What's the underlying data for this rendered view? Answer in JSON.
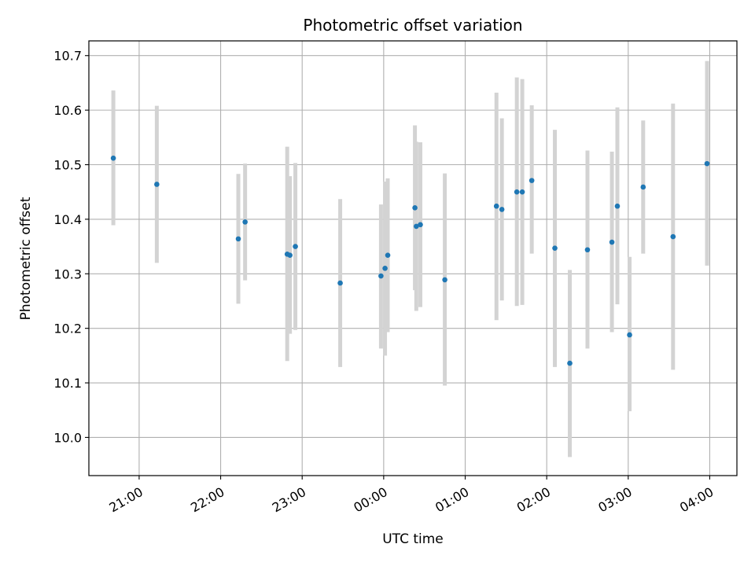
{
  "chart_data": {
    "type": "scatter",
    "title": "Photometric offset variation",
    "xlabel": "UTC time",
    "ylabel": "Photometric offset",
    "x_tick_labels": [
      "21:00",
      "22:00",
      "23:00",
      "00:00",
      "01:00",
      "02:00",
      "03:00",
      "04:00"
    ],
    "x_tick_times": [
      "2024-01-01T21:00",
      "2024-01-01T22:00",
      "2024-01-01T23:00",
      "2024-01-02T00:00",
      "2024-01-02T01:00",
      "2024-01-02T02:00",
      "2024-01-02T03:00",
      "2024-01-02T04:00"
    ],
    "xlim": [
      "2024-01-01T20:23",
      "2024-01-02T04:20"
    ],
    "y_ticks": [
      "10.0",
      "10.1",
      "10.2",
      "10.3",
      "10.4",
      "10.5",
      "10.6",
      "10.7"
    ],
    "ylim": [
      9.93,
      10.727
    ],
    "grid": true,
    "marker_color": "#1f77b4",
    "errorbar_color": "#d3d3d3",
    "points": [
      {
        "time": "2024-01-01T20:41",
        "y": 10.512,
        "low": 10.389,
        "high": 10.636
      },
      {
        "time": "2024-01-01T21:13",
        "y": 10.464,
        "low": 10.32,
        "high": 10.608
      },
      {
        "time": "2024-01-01T22:13",
        "y": 10.364,
        "low": 10.245,
        "high": 10.483
      },
      {
        "time": "2024-01-01T22:18",
        "y": 10.395,
        "low": 10.288,
        "high": 10.502
      },
      {
        "time": "2024-01-01T22:49",
        "y": 10.336,
        "low": 10.14,
        "high": 10.533
      },
      {
        "time": "2024-01-01T22:51",
        "y": 10.334,
        "low": 10.19,
        "high": 10.479
      },
      {
        "time": "2024-01-01T22:55",
        "y": 10.35,
        "low": 10.197,
        "high": 10.503
      },
      {
        "time": "2024-01-01T23:28",
        "y": 10.283,
        "low": 10.129,
        "high": 10.437
      },
      {
        "time": "2024-01-01T23:58",
        "y": 10.296,
        "low": 10.163,
        "high": 10.427
      },
      {
        "time": "2024-01-02T00:01",
        "y": 10.31,
        "low": 10.15,
        "high": 10.469
      },
      {
        "time": "2024-01-02T00:03",
        "y": 10.334,
        "low": 10.193,
        "high": 10.475
      },
      {
        "time": "2024-01-02T00:23",
        "y": 10.421,
        "low": 10.27,
        "high": 10.572
      },
      {
        "time": "2024-01-02T00:24",
        "y": 10.387,
        "low": 10.232,
        "high": 10.542
      },
      {
        "time": "2024-01-02T00:27",
        "y": 10.39,
        "low": 10.239,
        "high": 10.541
      },
      {
        "time": "2024-01-02T00:45",
        "y": 10.289,
        "low": 10.095,
        "high": 10.484
      },
      {
        "time": "2024-01-02T01:23",
        "y": 10.424,
        "low": 10.215,
        "high": 10.632
      },
      {
        "time": "2024-01-02T01:27",
        "y": 10.418,
        "low": 10.251,
        "high": 10.585
      },
      {
        "time": "2024-01-02T01:38",
        "y": 10.45,
        "low": 10.241,
        "high": 10.66
      },
      {
        "time": "2024-01-02T01:42",
        "y": 10.45,
        "low": 10.243,
        "high": 10.657
      },
      {
        "time": "2024-01-02T01:49",
        "y": 10.471,
        "low": 10.337,
        "high": 10.609
      },
      {
        "time": "2024-01-02T02:06",
        "y": 10.347,
        "low": 10.129,
        "high": 10.564
      },
      {
        "time": "2024-01-02T02:17",
        "y": 10.136,
        "low": 9.964,
        "high": 10.307
      },
      {
        "time": "2024-01-02T02:30",
        "y": 10.344,
        "low": 10.163,
        "high": 10.526
      },
      {
        "time": "2024-01-02T02:48",
        "y": 10.358,
        "low": 10.193,
        "high": 10.524
      },
      {
        "time": "2024-01-02T02:52",
        "y": 10.424,
        "low": 10.244,
        "high": 10.605
      },
      {
        "time": "2024-01-02T03:01",
        "y": 10.188,
        "low": 10.048,
        "high": 10.331
      },
      {
        "time": "2024-01-02T03:11",
        "y": 10.459,
        "low": 10.337,
        "high": 10.581
      },
      {
        "time": "2024-01-02T03:33",
        "y": 10.368,
        "low": 10.124,
        "high": 10.612
      },
      {
        "time": "2024-01-02T03:58",
        "y": 10.502,
        "low": 10.315,
        "high": 10.69
      }
    ]
  }
}
